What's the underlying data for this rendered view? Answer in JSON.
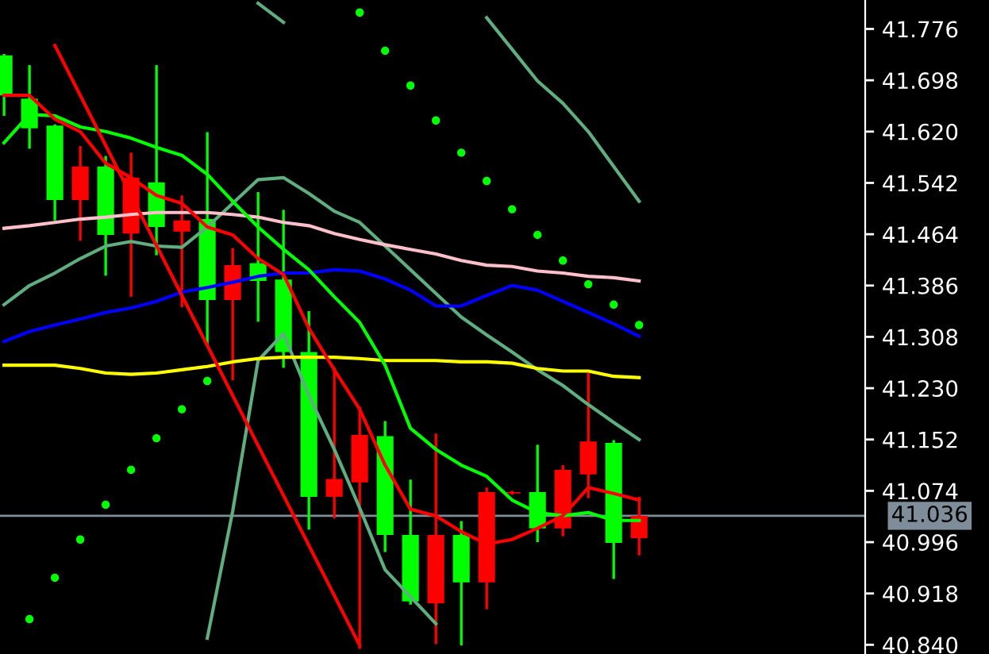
{
  "chart_data": {
    "type": "candlestick",
    "categories": [
      null,
      null,
      null,
      null,
      null,
      null,
      null,
      null,
      null,
      null,
      null,
      null,
      null,
      null,
      null,
      null,
      null,
      null,
      null,
      null,
      null,
      null,
      null,
      null,
      null,
      null
    ],
    "ohlc": [
      [
        41.675,
        41.736,
        41.646,
        41.736
      ],
      [
        41.625,
        41.719,
        41.596,
        41.67
      ],
      [
        41.516,
        41.629,
        41.487,
        41.629
      ],
      [
        41.567,
        41.596,
        41.456,
        41.516
      ],
      [
        41.463,
        41.581,
        41.403,
        41.567
      ],
      [
        41.55,
        41.586,
        41.371,
        41.465
      ],
      [
        41.475,
        41.719,
        41.434,
        41.543
      ],
      [
        41.485,
        41.521,
        41.355,
        41.468
      ],
      [
        41.364,
        41.617,
        41.297,
        41.487
      ],
      [
        41.417,
        41.441,
        41.244,
        41.364
      ],
      [
        41.393,
        41.526,
        41.333,
        41.42
      ],
      [
        41.285,
        41.499,
        41.263,
        41.395
      ],
      [
        41.065,
        41.345,
        41.017,
        41.285
      ],
      [
        41.092,
        41.26,
        41.034,
        41.065
      ],
      [
        41.159,
        41.2,
        40.836,
        41.087
      ],
      [
        41.007,
        41.178,
        40.983,
        41.157
      ],
      [
        40.906,
        41.089,
        40.903,
        41.007
      ],
      [
        41.007,
        41.159,
        40.843,
        40.903
      ],
      [
        40.935,
        41.026,
        40.841,
        41.007
      ],
      [
        41.072,
        41.077,
        40.896,
        40.935
      ],
      [
        41.072,
        41.072,
        41.07,
        41.07
      ],
      [
        41.017,
        41.142,
        40.998,
        41.072
      ],
      [
        41.106,
        41.111,
        41.007,
        41.017
      ],
      [
        41.149,
        41.251,
        41.065,
        41.099
      ],
      [
        40.995,
        41.149,
        40.942,
        41.147
      ],
      [
        41.036,
        41.063,
        40.978,
        41.002
      ]
    ],
    "colors": [
      "#00ff00",
      "#00ff00",
      "#00ff00",
      "#ff0000",
      "#00ff00",
      "#ff0000",
      "#00ff00",
      "#ff0000",
      "#00ff00",
      "#ff0000",
      "#00ff00",
      "#00ff00",
      "#00ff00",
      "#ff0000",
      "#ff0000",
      "#00ff00",
      "#00ff00",
      "#ff0000",
      "#00ff00",
      "#ff0000",
      "#ff0000",
      "#00ff00",
      "#ff0000",
      "#ff0000",
      "#00ff00",
      "#ff0000"
    ],
    "series": [
      {
        "type": "line",
        "color": "#5fae80",
        "values": [
          null,
          null,
          null,
          null,
          null,
          null,
          null,
          null,
          null,
          null,
          41.815,
          41.786,
          null,
          null,
          null,
          null,
          null,
          null,
          null,
          41.793,
          41.745,
          41.697,
          41.663,
          41.62,
          41.567,
          41.514
        ]
      },
      {
        "type": "line",
        "color": "#5fae80",
        "values": [
          41.357,
          41.386,
          41.405,
          41.427,
          41.446,
          41.453,
          41.446,
          41.444,
          41.475,
          41.511,
          41.547,
          41.55,
          41.526,
          41.499,
          41.482,
          41.446,
          41.41,
          41.374,
          41.338,
          41.311,
          41.285,
          41.258,
          41.234,
          41.205,
          41.178,
          41.152
        ]
      },
      {
        "type": "line",
        "color": "#5fae80",
        "values": [
          null,
          null,
          null,
          null,
          null,
          null,
          null,
          null,
          40.85,
          41.043,
          41.272,
          41.313,
          41.219,
          41.137,
          41.048,
          40.954,
          40.913,
          40.872,
          null,
          null,
          null,
          null,
          null,
          null,
          null,
          null
        ]
      },
      {
        "type": "line",
        "color": "#ffff00",
        "values": [
          41.265,
          41.265,
          41.265,
          41.26,
          41.253,
          41.251,
          41.253,
          41.258,
          41.263,
          41.27,
          41.275,
          41.277,
          41.277,
          41.277,
          41.275,
          41.272,
          41.272,
          41.272,
          41.27,
          41.27,
          41.268,
          41.26,
          41.256,
          41.256,
          41.248,
          41.246
        ]
      },
      {
        "type": "line",
        "color": "#ffc0cb",
        "values": [
          41.473,
          41.477,
          41.482,
          41.487,
          41.49,
          41.494,
          41.497,
          41.497,
          41.497,
          41.494,
          41.49,
          41.482,
          41.477,
          41.465,
          41.456,
          41.448,
          41.441,
          41.434,
          41.424,
          41.417,
          41.415,
          41.408,
          41.405,
          41.4,
          41.398,
          41.393
        ]
      },
      {
        "type": "line",
        "color": "#0000ff",
        "values": [
          41.301,
          41.316,
          41.326,
          41.335,
          41.345,
          41.352,
          41.362,
          41.376,
          41.383,
          41.391,
          41.4,
          41.405,
          41.405,
          41.41,
          41.408,
          41.396,
          41.379,
          41.355,
          41.355,
          41.371,
          41.386,
          41.379,
          41.362,
          41.345,
          41.328,
          41.309
        ]
      },
      {
        "type": "line",
        "color": "#00ff00",
        "values": [
          41.603,
          41.646,
          41.644,
          41.627,
          41.62,
          41.61,
          41.596,
          41.584,
          41.555,
          41.514,
          41.475,
          41.441,
          41.41,
          41.369,
          41.33,
          41.265,
          41.169,
          41.137,
          41.113,
          41.096,
          41.06,
          41.041,
          41.036,
          41.041,
          41.029,
          41.029
        ]
      },
      {
        "type": "line",
        "color": "#ff0000",
        "values": [
          41.675,
          41.675,
          41.639,
          41.62,
          41.572,
          41.55,
          41.523,
          41.511,
          41.475,
          41.463,
          41.427,
          41.403,
          41.321,
          41.258,
          41.198,
          41.113,
          41.046,
          41.036,
          41.012,
          40.993,
          41.0,
          41.017,
          41.036,
          41.079,
          41.07,
          41.06
        ]
      },
      {
        "type": "line",
        "color": "#ff0000",
        "values": [
          null,
          null,
          41.751,
          41.675,
          41.599,
          41.523,
          41.447,
          41.371,
          41.295,
          41.219,
          41.143,
          41.067,
          40.991,
          40.915,
          40.839,
          null,
          null,
          null,
          null,
          null,
          null,
          null,
          null,
          null,
          null,
          null
        ]
      },
      {
        "type": "scatter",
        "color": "#00ff00",
        "marker": "circle",
        "values": [
          null,
          40.879,
          40.942,
          41.0,
          41.053,
          41.106,
          41.154,
          41.198,
          41.241,
          null,
          null,
          null,
          null,
          null,
          41.801,
          41.743,
          41.69,
          41.637,
          41.588,
          41.545,
          41.502,
          41.463,
          41.424,
          41.388,
          41.357,
          41.326
        ]
      }
    ],
    "ylim": [
      40.826,
      41.82
    ],
    "yticks": [
      41.776,
      41.698,
      {
        "value": 41.62,
        "label": "41.620"
      },
      41.542,
      41.464,
      41.386,
      41.308,
      {
        "value": 41.23,
        "label": "41.230"
      },
      41.152,
      41.074,
      40.996,
      40.918,
      {
        "value": 40.84,
        "label": "40.840"
      }
    ],
    "ref_lines": [
      {
        "axis": "y",
        "value": 41.036,
        "label": "41.036",
        "color": "#7f8c99"
      }
    ],
    "tick_labels": "y",
    "grid": false,
    "legend": false
  }
}
